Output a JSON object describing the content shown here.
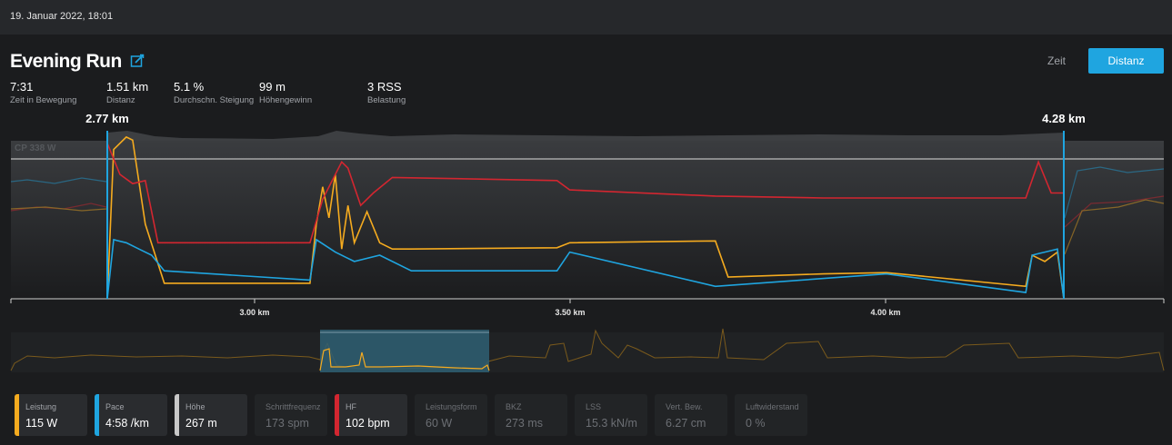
{
  "header": {
    "date": "19. Januar 2022, 18:01"
  },
  "activity": {
    "title": "Evening Run"
  },
  "toggle": {
    "time_label": "Zeit",
    "distance_label": "Distanz",
    "active": "Distanz"
  },
  "stats": [
    {
      "value": "7:31",
      "label": "Zeit in Bewegung"
    },
    {
      "value": "1.51 km",
      "label": "Distanz"
    },
    {
      "value": "5.1 %",
      "label": "Durchschn. Steigung"
    },
    {
      "value": "99 m",
      "label": "Höhengewinn"
    },
    {
      "value": "3 RSS",
      "label": "Belastung"
    }
  ],
  "chart": {
    "range_start_label": "2.77 km",
    "range_end_label": "4.28 km",
    "reference_line_label": "CP 338 W",
    "x_ticks": [
      "3.00 km",
      "3.50 km",
      "4.00 km"
    ],
    "colors": {
      "power": "#f5ab1f",
      "pace": "#1fa5e0",
      "elevation": "#c8c8c8",
      "heart_rate": "#d32630"
    }
  },
  "chart_data": {
    "type": "line",
    "x_unit": "km",
    "x_range": [
      2.77,
      4.28
    ],
    "reference_value_w": 338,
    "series": [
      {
        "name": "Leistung",
        "color": "#f5ab1f",
        "points": [
          [
            2.77,
            0
          ],
          [
            2.78,
            240
          ],
          [
            2.8,
            260
          ],
          [
            2.81,
            255
          ],
          [
            2.83,
            120
          ],
          [
            2.86,
            25
          ],
          [
            2.95,
            25
          ],
          [
            3.09,
            25
          ],
          [
            3.1,
            120
          ],
          [
            3.11,
            180
          ],
          [
            3.12,
            130
          ],
          [
            3.13,
            200
          ],
          [
            3.14,
            80
          ],
          [
            3.15,
            150
          ],
          [
            3.16,
            90
          ],
          [
            3.18,
            140
          ],
          [
            3.2,
            90
          ],
          [
            3.22,
            80
          ],
          [
            3.25,
            80
          ],
          [
            3.48,
            82
          ],
          [
            3.5,
            90
          ],
          [
            3.73,
            93
          ],
          [
            3.75,
            35
          ],
          [
            3.9,
            40
          ],
          [
            4.0,
            42
          ],
          [
            4.22,
            20
          ],
          [
            4.23,
            70
          ],
          [
            4.25,
            60
          ],
          [
            4.27,
            75
          ],
          [
            4.28,
            0
          ]
        ]
      },
      {
        "name": "Pace",
        "color": "#1fa5e0",
        "points": [
          [
            2.77,
            0
          ],
          [
            2.78,
            95
          ],
          [
            2.8,
            90
          ],
          [
            2.82,
            80
          ],
          [
            2.84,
            70
          ],
          [
            2.86,
            45
          ],
          [
            3.09,
            30
          ],
          [
            3.1,
            95
          ],
          [
            3.13,
            75
          ],
          [
            3.16,
            60
          ],
          [
            3.2,
            70
          ],
          [
            3.25,
            45
          ],
          [
            3.48,
            45
          ],
          [
            3.5,
            75
          ],
          [
            3.73,
            20
          ],
          [
            4.0,
            40
          ],
          [
            4.22,
            10
          ],
          [
            4.23,
            70
          ],
          [
            4.25,
            75
          ],
          [
            4.27,
            80
          ],
          [
            4.28,
            0
          ]
        ]
      },
      {
        "name": "HF",
        "color": "#d32630",
        "points": [
          [
            2.77,
            250
          ],
          [
            2.79,
            200
          ],
          [
            2.81,
            185
          ],
          [
            2.83,
            190
          ],
          [
            2.85,
            90
          ],
          [
            2.95,
            90
          ],
          [
            3.09,
            90
          ],
          [
            3.11,
            160
          ],
          [
            3.14,
            220
          ],
          [
            3.15,
            210
          ],
          [
            3.17,
            150
          ],
          [
            3.19,
            170
          ],
          [
            3.22,
            195
          ],
          [
            3.48,
            190
          ],
          [
            3.5,
            175
          ],
          [
            3.73,
            165
          ],
          [
            3.9,
            162
          ],
          [
            4.22,
            162
          ],
          [
            4.24,
            220
          ],
          [
            4.26,
            170
          ],
          [
            4.28,
            170
          ]
        ]
      }
    ]
  },
  "overview": {
    "selection": "2.77 km – 4.28 km"
  },
  "metric_cards": [
    {
      "label": "Leistung",
      "value": "115 W",
      "color": "#f5ab1f",
      "active": true
    },
    {
      "label": "Pace",
      "value": "4:58 /km",
      "color": "#1fa5e0",
      "active": true
    },
    {
      "label": "Höhe",
      "value": "267 m",
      "color": "#c8c8c8",
      "active": true
    },
    {
      "label": "Schrittfrequenz",
      "value": "173 spm",
      "color": "",
      "active": false
    },
    {
      "label": "HF",
      "value": "102 bpm",
      "color": "#d32630",
      "active": true
    },
    {
      "label": "Leistungsform",
      "value": "60 W",
      "color": "",
      "active": false
    },
    {
      "label": "BKZ",
      "value": "273 ms",
      "color": "",
      "active": false
    },
    {
      "label": "LSS",
      "value": "15.3 kN/m",
      "color": "",
      "active": false
    },
    {
      "label": "Vert. Bew.",
      "value": "6.27 cm",
      "color": "",
      "active": false
    },
    {
      "label": "Luftwiderstand",
      "value": "0 %",
      "color": "",
      "active": false
    }
  ]
}
